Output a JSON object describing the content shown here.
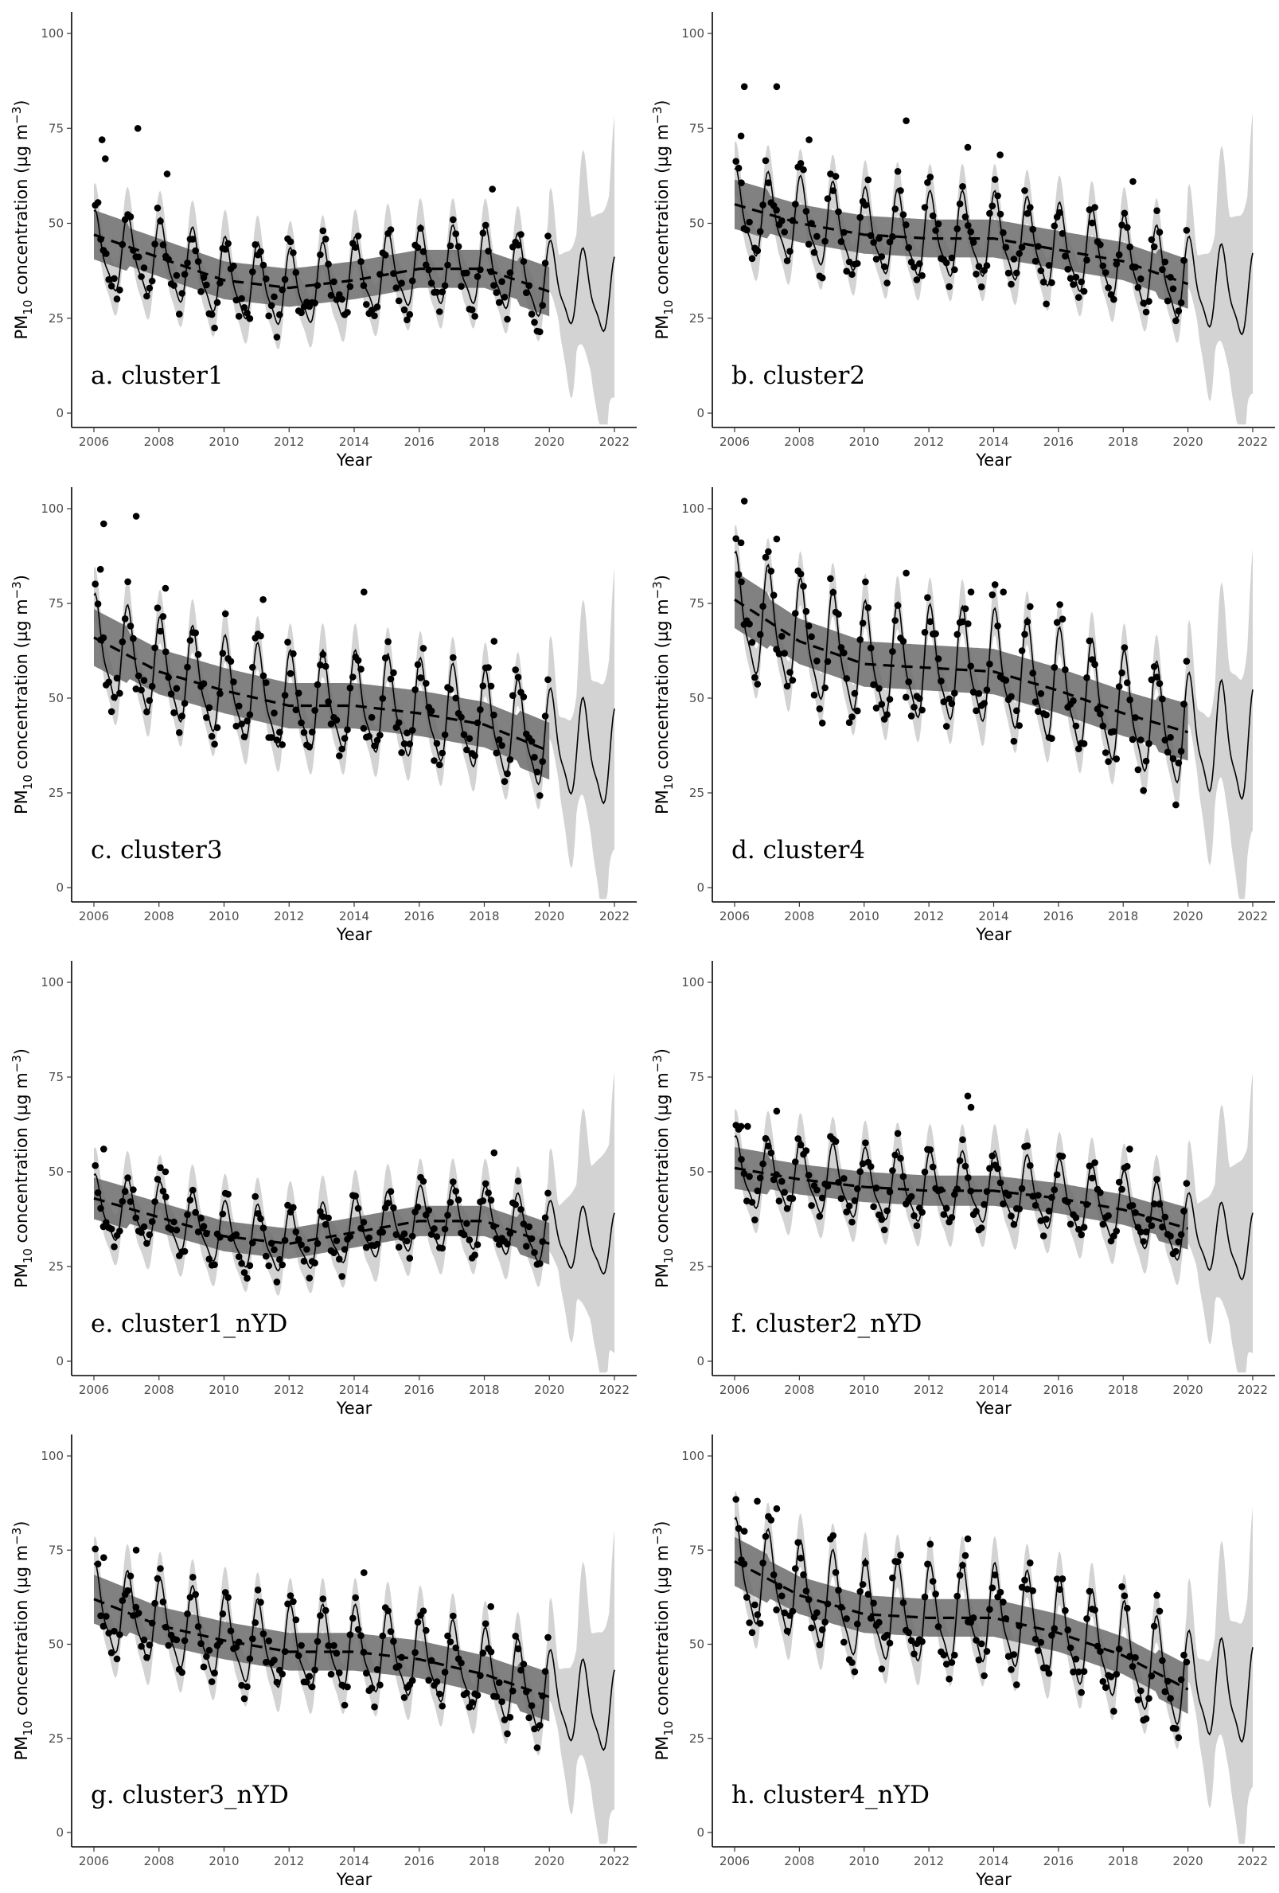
{
  "figure": {
    "xlabel": "Year",
    "ylabel_parts": {
      "pre": "PM",
      "sub": "10",
      "mid": " concentration (µg m",
      "sup": "−3",
      "post": ")"
    },
    "x_ticks": [
      "2006",
      "2008",
      "2010",
      "2012",
      "2014",
      "2016",
      "2018",
      "2020",
      "2022"
    ],
    "y_ticks": [
      "0",
      "25",
      "50",
      "75",
      "100"
    ],
    "colors": {
      "points": "#000000",
      "ribbon_light": "#d3d3d3",
      "ribbon_dark": "#6b6b6b",
      "trend": "#000000"
    }
  },
  "chart_data": [
    {
      "type": "line",
      "panel_label": "a. cluster1",
      "xlabel": "Year",
      "xlim": [
        2006,
        2022
      ],
      "ylim": [
        0,
        100
      ],
      "trend_points": [
        [
          2006,
          47
        ],
        [
          2008,
          41
        ],
        [
          2010,
          35
        ],
        [
          2012,
          33
        ],
        [
          2014,
          35
        ],
        [
          2016,
          38
        ],
        [
          2018,
          38
        ],
        [
          2020,
          32
        ]
      ],
      "trend_band": 5,
      "mean_points": [
        [
          2006,
          42
        ],
        [
          2008,
          40
        ],
        [
          2010,
          35
        ],
        [
          2012,
          32
        ],
        [
          2014,
          35
        ],
        [
          2016,
          38
        ],
        [
          2018,
          38
        ],
        [
          2020,
          34
        ],
        [
          2022,
          30
        ]
      ],
      "amplitude": 11,
      "obs_points": [
        [
          2006.25,
          72
        ],
        [
          2006.35,
          67
        ],
        [
          2007.35,
          75
        ],
        [
          2008.25,
          63
        ],
        [
          2018.25,
          59
        ]
      ]
    },
    {
      "type": "line",
      "panel_label": "b. cluster2",
      "xlabel": "Year",
      "xlim": [
        2006,
        2022
      ],
      "ylim": [
        0,
        100
      ],
      "trend_points": [
        [
          2006,
          55
        ],
        [
          2008,
          50
        ],
        [
          2010,
          47
        ],
        [
          2012,
          46
        ],
        [
          2014,
          46
        ],
        [
          2016,
          43
        ],
        [
          2018,
          40
        ],
        [
          2020,
          34
        ]
      ],
      "trend_band": 5,
      "mean_points": [
        [
          2006,
          52
        ],
        [
          2008,
          50
        ],
        [
          2010,
          47
        ],
        [
          2012,
          46
        ],
        [
          2014,
          46
        ],
        [
          2016,
          43
        ],
        [
          2018,
          40
        ],
        [
          2020,
          34
        ],
        [
          2022,
          30
        ]
      ],
      "amplitude": 12,
      "obs_points": [
        [
          2006.2,
          73
        ],
        [
          2006.3,
          86
        ],
        [
          2007.3,
          86
        ],
        [
          2008.3,
          72
        ],
        [
          2011.3,
          77
        ],
        [
          2013.2,
          70
        ],
        [
          2014.2,
          68
        ],
        [
          2018.3,
          61
        ]
      ]
    },
    {
      "type": "line",
      "panel_label": "c. cluster3",
      "xlabel": "Year",
      "xlim": [
        2006,
        2022
      ],
      "ylim": [
        0,
        100
      ],
      "trend_points": [
        [
          2006,
          66
        ],
        [
          2008,
          57
        ],
        [
          2010,
          52
        ],
        [
          2012,
          48
        ],
        [
          2014,
          48
        ],
        [
          2016,
          46
        ],
        [
          2018,
          43
        ],
        [
          2020,
          36
        ]
      ],
      "trend_band": 6,
      "mean_points": [
        [
          2006,
          63
        ],
        [
          2008,
          57
        ],
        [
          2010,
          52
        ],
        [
          2012,
          48
        ],
        [
          2014,
          48
        ],
        [
          2016,
          46
        ],
        [
          2018,
          43
        ],
        [
          2020,
          38
        ],
        [
          2022,
          33
        ]
      ],
      "amplitude": 14,
      "obs_points": [
        [
          2006.2,
          84
        ],
        [
          2006.3,
          96
        ],
        [
          2007.3,
          98
        ],
        [
          2008.2,
          79
        ],
        [
          2011.2,
          76
        ],
        [
          2014.3,
          78
        ],
        [
          2018.3,
          65
        ]
      ]
    },
    {
      "type": "line",
      "panel_label": "d. cluster4",
      "xlabel": "Year",
      "xlim": [
        2006,
        2022
      ],
      "ylim": [
        0,
        100
      ],
      "trend_points": [
        [
          2006,
          76
        ],
        [
          2008,
          65
        ],
        [
          2010,
          59
        ],
        [
          2012,
          58
        ],
        [
          2014,
          57
        ],
        [
          2016,
          52
        ],
        [
          2018,
          46
        ],
        [
          2020,
          41
        ]
      ],
      "trend_band": 6,
      "mean_points": [
        [
          2006,
          72
        ],
        [
          2008,
          65
        ],
        [
          2010,
          59
        ],
        [
          2012,
          58
        ],
        [
          2014,
          57
        ],
        [
          2016,
          52
        ],
        [
          2018,
          46
        ],
        [
          2020,
          40
        ],
        [
          2022,
          36
        ]
      ],
      "amplitude": 16,
      "obs_points": [
        [
          2006.3,
          102
        ],
        [
          2006.2,
          91
        ],
        [
          2007.3,
          92
        ],
        [
          2011.3,
          83
        ],
        [
          2013.3,
          78
        ],
        [
          2014.3,
          78
        ]
      ]
    },
    {
      "type": "line",
      "panel_label": "e. cluster1_nYD",
      "xlabel": "Year",
      "xlim": [
        2006,
        2022
      ],
      "ylim": [
        0,
        100
      ],
      "trend_points": [
        [
          2006,
          43
        ],
        [
          2008,
          38
        ],
        [
          2010,
          33
        ],
        [
          2012,
          31
        ],
        [
          2014,
          34
        ],
        [
          2016,
          37
        ],
        [
          2018,
          37
        ],
        [
          2020,
          31
        ]
      ],
      "trend_band": 4,
      "mean_points": [
        [
          2006,
          40
        ],
        [
          2008,
          38
        ],
        [
          2010,
          33
        ],
        [
          2012,
          31
        ],
        [
          2014,
          34
        ],
        [
          2016,
          37
        ],
        [
          2018,
          37
        ],
        [
          2020,
          33
        ],
        [
          2022,
          30
        ]
      ],
      "amplitude": 9,
      "obs_points": [
        [
          2006.3,
          56
        ],
        [
          2018.3,
          55
        ],
        [
          2008.2,
          50
        ]
      ]
    },
    {
      "type": "line",
      "panel_label": "f. cluster2_nYD",
      "xlabel": "Year",
      "xlim": [
        2006,
        2022
      ],
      "ylim": [
        0,
        100
      ],
      "trend_points": [
        [
          2006,
          51
        ],
        [
          2008,
          48
        ],
        [
          2010,
          46
        ],
        [
          2012,
          45
        ],
        [
          2014,
          45
        ],
        [
          2016,
          43
        ],
        [
          2018,
          40
        ],
        [
          2020,
          35
        ]
      ],
      "trend_band": 4,
      "mean_points": [
        [
          2006,
          49
        ],
        [
          2008,
          48
        ],
        [
          2010,
          46
        ],
        [
          2012,
          45
        ],
        [
          2014,
          45
        ],
        [
          2016,
          43
        ],
        [
          2018,
          40
        ],
        [
          2020,
          34
        ],
        [
          2022,
          29
        ]
      ],
      "amplitude": 10,
      "obs_points": [
        [
          2006.2,
          62
        ],
        [
          2006.4,
          62
        ],
        [
          2007.3,
          66
        ],
        [
          2013.2,
          70
        ],
        [
          2013.3,
          67
        ],
        [
          2018.2,
          56
        ]
      ]
    },
    {
      "type": "line",
      "panel_label": "g. cluster3_nYD",
      "xlabel": "Year",
      "xlim": [
        2006,
        2022
      ],
      "ylim": [
        0,
        100
      ],
      "trend_points": [
        [
          2006,
          62
        ],
        [
          2008,
          55
        ],
        [
          2010,
          51
        ],
        [
          2012,
          48
        ],
        [
          2014,
          48
        ],
        [
          2016,
          46
        ],
        [
          2018,
          42
        ],
        [
          2020,
          36
        ]
      ],
      "trend_band": 5,
      "mean_points": [
        [
          2006,
          59
        ],
        [
          2008,
          55
        ],
        [
          2010,
          51
        ],
        [
          2012,
          48
        ],
        [
          2014,
          48
        ],
        [
          2016,
          46
        ],
        [
          2018,
          42
        ],
        [
          2020,
          36
        ],
        [
          2022,
          31
        ]
      ],
      "amplitude": 12,
      "obs_points": [
        [
          2006.3,
          73
        ],
        [
          2007.3,
          75
        ],
        [
          2014.3,
          69
        ],
        [
          2018.2,
          60
        ]
      ]
    },
    {
      "type": "line",
      "panel_label": "h. cluster4_nYD",
      "xlabel": "Year",
      "xlim": [
        2006,
        2022
      ],
      "ylim": [
        0,
        100
      ],
      "trend_points": [
        [
          2006,
          72
        ],
        [
          2008,
          63
        ],
        [
          2010,
          58
        ],
        [
          2012,
          57
        ],
        [
          2014,
          57
        ],
        [
          2016,
          53
        ],
        [
          2018,
          47
        ],
        [
          2020,
          38
        ]
      ],
      "trend_band": 5,
      "mean_points": [
        [
          2006,
          69
        ],
        [
          2008,
          63
        ],
        [
          2010,
          58
        ],
        [
          2012,
          57
        ],
        [
          2014,
          57
        ],
        [
          2016,
          53
        ],
        [
          2018,
          47
        ],
        [
          2020,
          39
        ],
        [
          2022,
          35
        ]
      ],
      "amplitude": 14,
      "obs_points": [
        [
          2006.3,
          80
        ],
        [
          2006.7,
          88
        ],
        [
          2007.3,
          86
        ],
        [
          2013.2,
          78
        ]
      ]
    }
  ]
}
